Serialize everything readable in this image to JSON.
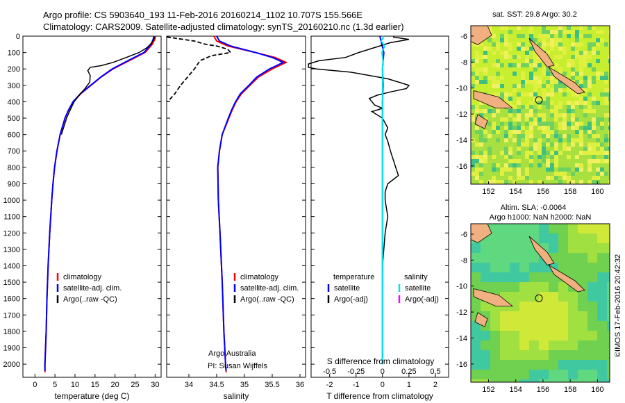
{
  "header": {
    "line1": "Argo profile: CS 5903640_193 11-Feb-2016 20160214_1102 10.707S 155.566E",
    "line2": "Climatology: CARS2009. Satellite-adjusted climatology: synTS_20160210.nc (1.3d earlier)"
  },
  "colors": {
    "climatology": "#ff0000",
    "satellite_adj": "#0000ff",
    "argo": "#000000",
    "salinity_satellite": "#00e5ee",
    "salinity_argo": "#ff00ff",
    "land": "#f0b080"
  },
  "map_labels": {
    "sst_title": "sat. SST: 29.8 Argo: 30.2",
    "sla_title1": "Altim. SLA: -0.0064",
    "sla_title2": "Argo h1000: NaN h2000: NaN",
    "credit": "©IMOS 17-Feb-2016 20:42:32",
    "x_ticks": [
      "152",
      "154",
      "156",
      "158",
      "160"
    ],
    "y_ticks": [
      "-6",
      "-8",
      "-10",
      "-12",
      "-14",
      "-16"
    ]
  },
  "panel_text": {
    "argo_australia": "Argo Australia",
    "pi": "PI: Susan Wijffels",
    "s_diff": "S difference from climatology",
    "t_diff": "T difference from climatology"
  },
  "legends": {
    "temp": [
      "climatology",
      "satellite-adj. clim.",
      "Argo(..raw -QC)"
    ],
    "sal": [
      "climatology",
      "satellite-adj. clim.",
      "Argo(..raw -QC)"
    ],
    "diff_head_t": "temperature",
    "diff_head_s": "salinity",
    "diff_t": [
      "satellite",
      "Argo(-adj)"
    ],
    "diff_s": [
      "satellite",
      "Argo(-adj)"
    ]
  },
  "chart_data": [
    {
      "type": "line",
      "xlabel": "temperature (deg C)",
      "ylabel": "",
      "xlim": [
        -3,
        31.5
      ],
      "ylim": [
        2080,
        0
      ],
      "x_ticks": [
        0,
        5,
        10,
        15,
        20,
        25,
        30
      ],
      "y_ticks": [
        0,
        100,
        200,
        300,
        400,
        500,
        600,
        700,
        800,
        900,
        1000,
        1100,
        1200,
        1300,
        1400,
        1500,
        1600,
        1700,
        1800,
        1900,
        2000
      ],
      "series": [
        {
          "name": "climatology",
          "depth": [
            0,
            20,
            50,
            100,
            150,
            200,
            250,
            300,
            350,
            400,
            450,
            500,
            600,
            700,
            800,
            900,
            1000,
            1200,
            1400,
            1600,
            1800,
            2000,
            2050
          ],
          "values": [
            30.1,
            29.9,
            29.3,
            27.5,
            23.5,
            19.5,
            16.5,
            14.0,
            11.5,
            9.6,
            8.4,
            7.5,
            6.3,
            5.5,
            4.9,
            4.5,
            4.2,
            3.7,
            3.3,
            3.0,
            2.8,
            2.5,
            2.5
          ]
        },
        {
          "name": "satellite-adj. clim.",
          "depth": [
            0,
            20,
            50,
            100,
            150,
            200,
            250,
            300,
            350,
            400,
            450,
            500,
            600,
            700,
            800,
            900,
            1000,
            1200,
            1400,
            1600,
            1800,
            2000,
            2040
          ],
          "values": [
            29.7,
            29.5,
            29.0,
            27.2,
            23.2,
            19.3,
            16.4,
            13.9,
            11.4,
            9.5,
            8.4,
            7.5,
            6.3,
            5.5,
            4.9,
            4.5,
            4.2,
            3.7,
            3.3,
            3.0,
            2.8,
            2.5,
            2.5
          ]
        },
        {
          "name": "Argo(..raw -QC)",
          "depth": [
            5,
            20,
            40,
            70,
            100,
            130,
            160,
            180,
            190,
            210,
            240,
            280,
            320,
            360,
            400,
            450,
            500,
            600
          ],
          "values": [
            29.9,
            29.7,
            29.2,
            28.0,
            26.0,
            22.8,
            19.5,
            16.5,
            13.8,
            13.2,
            13.8,
            13.7,
            12.5,
            11.0,
            9.8,
            8.8,
            7.9,
            6.6
          ]
        }
      ]
    },
    {
      "type": "line",
      "xlabel": "salinity",
      "ylabel": "",
      "xlim": [
        33.6,
        36.1
      ],
      "ylim": [
        2080,
        0
      ],
      "x_ticks": [
        34,
        34.5,
        35,
        35.5,
        36
      ],
      "series": [
        {
          "name": "climatology",
          "depth": [
            0,
            30,
            60,
            100,
            130,
            160,
            200,
            250,
            300,
            350,
            400,
            450,
            500,
            600,
            700,
            800,
            1000,
            1200,
            1500,
            1800,
            2000,
            2050
          ],
          "values": [
            34.45,
            34.5,
            34.7,
            35.2,
            35.55,
            35.75,
            35.5,
            35.25,
            35.1,
            34.95,
            34.85,
            34.78,
            34.72,
            34.6,
            34.55,
            34.52,
            34.53,
            34.56,
            34.6,
            34.63,
            34.66,
            34.67
          ]
        },
        {
          "name": "satellite-adj. clim.",
          "depth": [
            0,
            30,
            60,
            100,
            130,
            160,
            200,
            250,
            300,
            350,
            400,
            450,
            500,
            600,
            700,
            800,
            1000,
            1200,
            1500,
            1800,
            2000,
            2040
          ],
          "values": [
            34.5,
            34.55,
            34.75,
            35.2,
            35.5,
            35.7,
            35.45,
            35.22,
            35.08,
            34.93,
            34.84,
            34.77,
            34.71,
            34.6,
            34.55,
            34.52,
            34.53,
            34.56,
            34.6,
            34.63,
            34.66,
            34.67
          ]
        },
        {
          "name": "Argo(..raw -QC)",
          "depth": [
            5,
            20,
            30,
            50,
            60,
            80,
            100,
            120,
            150,
            200,
            260,
            300,
            350,
            400
          ],
          "values": [
            33.6,
            33.9,
            34.1,
            34.3,
            34.5,
            34.7,
            34.75,
            34.4,
            34.2,
            34.1,
            33.95,
            33.85,
            33.75,
            33.62
          ]
        }
      ]
    },
    {
      "type": "line",
      "xlabel": "T difference from climatology",
      "ylabel": "",
      "xlim": [
        -2.7,
        2.5
      ],
      "ylim": [
        2080,
        0
      ],
      "x_ticks": [
        -2,
        -1,
        0,
        1,
        2
      ],
      "x2label": "S difference from climatology",
      "x2_ticks": [
        "-0.5",
        "-0.25",
        "0",
        "0.25",
        "0.5"
      ],
      "series": [
        {
          "name": "T satellite",
          "depth": [
            0,
            100,
            200,
            300,
            400,
            600,
            800,
            1000,
            1500,
            2000
          ],
          "values": [
            -0.1,
            0.05,
            0.0,
            0.02,
            0.0,
            0.0,
            0.0,
            0.0,
            0.0,
            0.0
          ]
        },
        {
          "name": "T Argo(-adj)",
          "depth": [
            5,
            20,
            40,
            70,
            100,
            130,
            150,
            170,
            180,
            190,
            200,
            220,
            260,
            300,
            320,
            340,
            360,
            380,
            400,
            420,
            440,
            460,
            500,
            560,
            600,
            640,
            700,
            800,
            850,
            900,
            950,
            1000,
            1100,
            1200,
            1400,
            1600,
            1800,
            1950
          ],
          "values": [
            0.4,
            1.0,
            0.3,
            -0.3,
            -0.9,
            -1.4,
            -2.4,
            -2.8,
            -2.8,
            -2.8,
            -2.5,
            -1.2,
            0.2,
            1.0,
            0.9,
            0.3,
            -0.2,
            -0.5,
            -0.4,
            -0.3,
            0.0,
            -0.4,
            0.0,
            0.2,
            0.1,
            0.2,
            0.3,
            0.5,
            0.6,
            0.2,
            0.1,
            0.1,
            0.2,
            0.1,
            0.0,
            0.0,
            0.0,
            0.0
          ]
        },
        {
          "name": "S satellite",
          "depth": [
            0,
            30,
            60,
            100,
            150,
            200,
            300,
            400,
            600,
            800,
            1000,
            1500,
            2000
          ],
          "values": [
            0.05,
            -0.05,
            0.08,
            -0.02,
            0.02,
            0.0,
            0.0,
            0.0,
            0.0,
            0.0,
            0.0,
            0.0,
            0.0
          ]
        }
      ]
    }
  ]
}
